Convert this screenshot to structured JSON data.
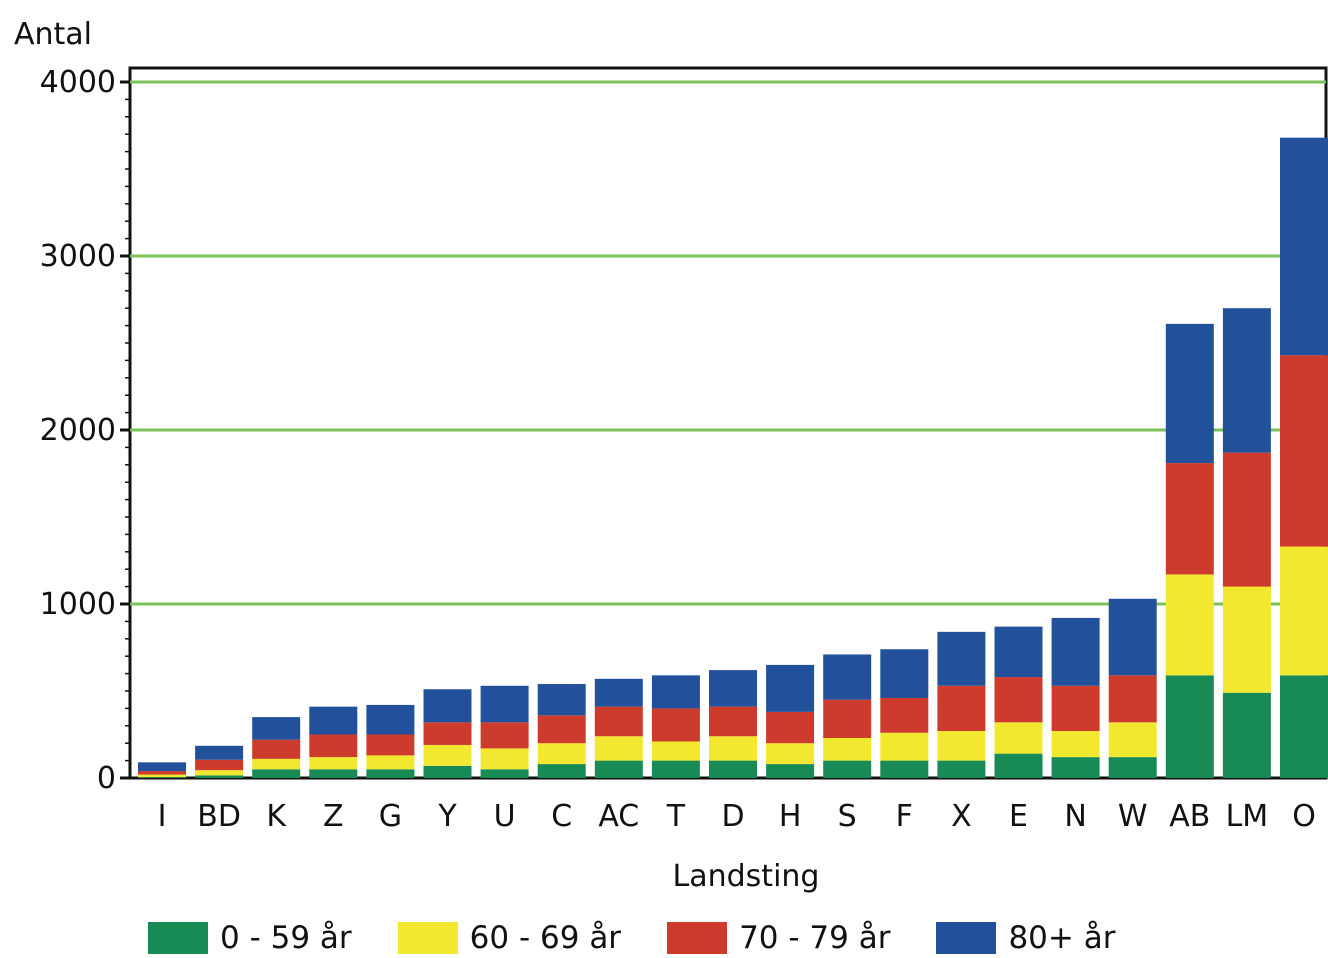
{
  "chart_data": {
    "type": "bar",
    "stacked": true,
    "ylabel": "Antal",
    "xlabel": "Landsting",
    "ylim": [
      0,
      4000
    ],
    "yticks": [
      0,
      1000,
      2000,
      3000,
      4000
    ],
    "grid": "horizontal",
    "legend_position": "bottom",
    "categories": [
      "I",
      "BD",
      "K",
      "Z",
      "G",
      "Y",
      "U",
      "C",
      "AC",
      "T",
      "D",
      "H",
      "S",
      "F",
      "X",
      "E",
      "N",
      "W",
      "AB",
      "LM",
      "O"
    ],
    "series": [
      {
        "name": "0 - 59 år",
        "color": "#178a55",
        "values": [
          5,
          15,
          50,
          50,
          50,
          70,
          50,
          80,
          100,
          100,
          100,
          80,
          100,
          100,
          100,
          140,
          120,
          120,
          590,
          490,
          590
        ]
      },
      {
        "name": "60 - 69 år",
        "color": "#f2e830",
        "values": [
          15,
          30,
          60,
          70,
          80,
          120,
          120,
          120,
          140,
          110,
          140,
          120,
          130,
          160,
          170,
          180,
          150,
          200,
          580,
          610,
          740
        ]
      },
      {
        "name": "70 - 79 år",
        "color": "#cc3b2b",
        "values": [
          20,
          60,
          110,
          130,
          120,
          130,
          150,
          160,
          170,
          190,
          170,
          180,
          220,
          200,
          260,
          260,
          260,
          270,
          640,
          770,
          1100
        ]
      },
      {
        "name": "80+ år",
        "color": "#22509a",
        "values": [
          50,
          80,
          130,
          160,
          170,
          190,
          210,
          180,
          160,
          190,
          210,
          270,
          260,
          280,
          310,
          290,
          390,
          440,
          800,
          830,
          1250
        ]
      }
    ]
  }
}
